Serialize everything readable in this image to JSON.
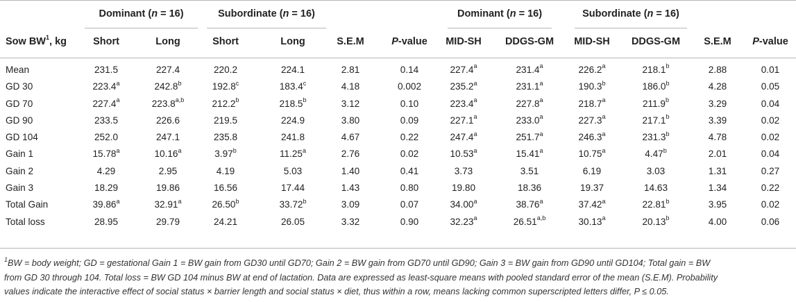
{
  "table": {
    "group_headers": [
      {
        "label": "Dominant (n = 16)",
        "id": "dominant-1"
      },
      {
        "label": "Subordinate (n = 16)",
        "id": "subordinate-1"
      },
      {
        "label": "Dominant (n = 16)",
        "id": "dominant-2"
      },
      {
        "label": "Subordinate (n = 16)",
        "id": "subordinate-2"
      }
    ],
    "row_header_label": "Sow BW",
    "row_header_sup": "1",
    "row_header_unit": ", kg",
    "columns": [
      "Short",
      "Long",
      "Short",
      "Long",
      "S.E.M",
      "P-value",
      "MID-SH",
      "DDGS-GM",
      "MID-SH",
      "DDGS-GM",
      "S.E.M",
      "P-value"
    ],
    "rows": [
      {
        "label": "Mean",
        "cells": [
          [
            "231.5",
            ""
          ],
          [
            "227.4",
            ""
          ],
          [
            "220.2",
            ""
          ],
          [
            "224.1",
            ""
          ],
          [
            "2.81",
            ""
          ],
          [
            "0.14",
            ""
          ],
          [
            "227.4",
            "a"
          ],
          [
            "231.4",
            "a"
          ],
          [
            "226.2",
            "a"
          ],
          [
            "218.1",
            "b"
          ],
          [
            "2.88",
            ""
          ],
          [
            "0.01",
            ""
          ]
        ]
      },
      {
        "label": "GD 30",
        "cells": [
          [
            "223.4",
            "a"
          ],
          [
            "242.8",
            "b"
          ],
          [
            "192.8",
            "c"
          ],
          [
            "183.4",
            "c"
          ],
          [
            "4.18",
            ""
          ],
          [
            "0.002",
            ""
          ],
          [
            "235.2",
            "a"
          ],
          [
            "231.1",
            "a"
          ],
          [
            "190.3",
            "b"
          ],
          [
            "186.0",
            "b"
          ],
          [
            "4.28",
            ""
          ],
          [
            "0.05",
            ""
          ]
        ]
      },
      {
        "label": "GD 70",
        "cells": [
          [
            "227.4",
            "a"
          ],
          [
            "223.8",
            "a,b"
          ],
          [
            "212.2",
            "b"
          ],
          [
            "218.5",
            "b"
          ],
          [
            "3.12",
            ""
          ],
          [
            "0.10",
            ""
          ],
          [
            "223.4",
            "a"
          ],
          [
            "227.8",
            "a"
          ],
          [
            "218.7",
            "a"
          ],
          [
            "211.9",
            "b"
          ],
          [
            "3.29",
            ""
          ],
          [
            "0.04",
            ""
          ]
        ]
      },
      {
        "label": "GD 90",
        "cells": [
          [
            "233.5",
            ""
          ],
          [
            "226.6",
            ""
          ],
          [
            "219.5",
            ""
          ],
          [
            "224.9",
            ""
          ],
          [
            "3.80",
            ""
          ],
          [
            "0.09",
            ""
          ],
          [
            "227.1",
            "a"
          ],
          [
            "233.0",
            "a"
          ],
          [
            "227.3",
            "a"
          ],
          [
            "217.1",
            "b"
          ],
          [
            "3.39",
            ""
          ],
          [
            "0.02",
            ""
          ]
        ]
      },
      {
        "label": "GD 104",
        "cells": [
          [
            "252.0",
            ""
          ],
          [
            "247.1",
            ""
          ],
          [
            "235.8",
            ""
          ],
          [
            "241.8",
            ""
          ],
          [
            "4.67",
            ""
          ],
          [
            "0.22",
            ""
          ],
          [
            "247.4",
            "a"
          ],
          [
            "251.7",
            "a"
          ],
          [
            "246.3",
            "a"
          ],
          [
            "231.3",
            "b"
          ],
          [
            "4.78",
            ""
          ],
          [
            "0.02",
            ""
          ]
        ]
      },
      {
        "label": "Gain 1",
        "cells": [
          [
            "15.78",
            "a"
          ],
          [
            "10.16",
            "a"
          ],
          [
            "3.97",
            "b"
          ],
          [
            "11.25",
            "a"
          ],
          [
            "2.76",
            ""
          ],
          [
            "0.02",
            ""
          ],
          [
            "10.53",
            "a"
          ],
          [
            "15.41",
            "a"
          ],
          [
            "10.75",
            "a"
          ],
          [
            "4.47",
            "b"
          ],
          [
            "2.01",
            ""
          ],
          [
            "0.04",
            ""
          ]
        ]
      },
      {
        "label": "Gain 2",
        "cells": [
          [
            "4.29",
            ""
          ],
          [
            "2.95",
            ""
          ],
          [
            "4.19",
            ""
          ],
          [
            "5.03",
            ""
          ],
          [
            "1.40",
            ""
          ],
          [
            "0.41",
            ""
          ],
          [
            "3.73",
            ""
          ],
          [
            "3.51",
            ""
          ],
          [
            "6.19",
            ""
          ],
          [
            "3.03",
            ""
          ],
          [
            "1.31",
            ""
          ],
          [
            "0.27",
            ""
          ]
        ]
      },
      {
        "label": "Gain 3",
        "cells": [
          [
            "18.29",
            ""
          ],
          [
            "19.86",
            ""
          ],
          [
            "16.56",
            ""
          ],
          [
            "17.44",
            ""
          ],
          [
            "1.43",
            ""
          ],
          [
            "0.80",
            ""
          ],
          [
            "19.80",
            ""
          ],
          [
            "18.36",
            ""
          ],
          [
            "19.37",
            ""
          ],
          [
            "14.63",
            ""
          ],
          [
            "1.34",
            ""
          ],
          [
            "0.22",
            ""
          ]
        ]
      },
      {
        "label": "Total Gain",
        "cells": [
          [
            "39.86",
            "a"
          ],
          [
            "32.91",
            "a"
          ],
          [
            "26.50",
            "b"
          ],
          [
            "33.72",
            "b"
          ],
          [
            "3.09",
            ""
          ],
          [
            "0.07",
            ""
          ],
          [
            "34.00",
            "a"
          ],
          [
            "38.76",
            "a"
          ],
          [
            "37.42",
            "a"
          ],
          [
            "22.81",
            "b"
          ],
          [
            "3.95",
            ""
          ],
          [
            "0.02",
            ""
          ]
        ]
      },
      {
        "label": "Total loss",
        "cells": [
          [
            "28.95",
            ""
          ],
          [
            "29.79",
            ""
          ],
          [
            "24.21",
            ""
          ],
          [
            "26.05",
            ""
          ],
          [
            "3.32",
            ""
          ],
          [
            "0.90",
            ""
          ],
          [
            "32.23",
            "a"
          ],
          [
            "26.51",
            "a,b"
          ],
          [
            "30.13",
            "a"
          ],
          [
            "20.13",
            "b"
          ],
          [
            "4.00",
            ""
          ],
          [
            "0.06",
            ""
          ]
        ]
      }
    ]
  },
  "footnote": {
    "line1": "BW = body weight; GD = gestational Gain 1 = BW gain from GD30 until GD70; Gain 2 = BW gain from GD70 until GD90; Gain 3 = BW gain from GD90 until GD104; Total gain = BW",
    "line2": "from GD 30 through 104. Total loss = BW GD 104 minus BW at end of lactation. Data are expressed as least-square means with pooled standard error of the mean (S.E.M). Probability",
    "line3": "values indicate the interactive effect of social status × barrier length and social status × diet, thus within a row, means lacking common superscripted letters differ, P ≤ 0.05.",
    "sup": "1"
  }
}
